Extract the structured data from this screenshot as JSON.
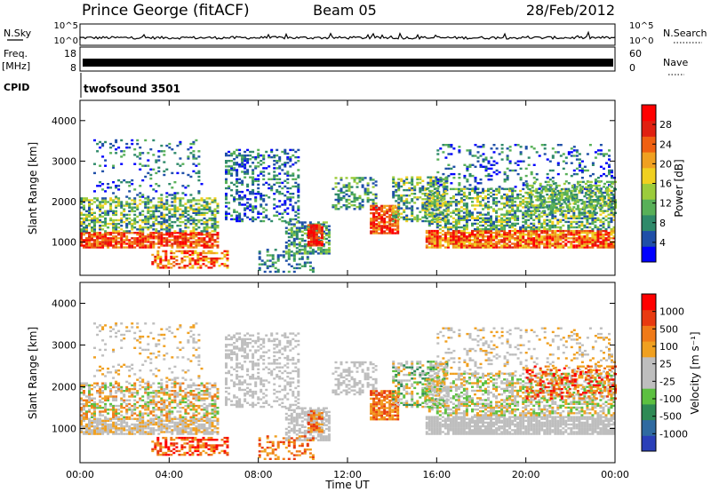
{
  "header": {
    "station": "Prince George (fitACF)",
    "beam": "Beam 05",
    "date": "28/Feb/2012"
  },
  "left_labels": {
    "nsky": "N.Sky",
    "freq_line1": "Freq.",
    "freq_line2": "[MHz]",
    "cpid": "CPID"
  },
  "right_labels": {
    "nsearch": "N.Search",
    "nave": "Nave"
  },
  "cpid_value": "twofsound 3501",
  "noise_axis": {
    "ticks": [
      "10^5",
      "10^0"
    ],
    "right_ticks": [
      "10^5",
      "10^0"
    ]
  },
  "freq_axis": {
    "ticks": [
      "18",
      "8"
    ],
    "right_ticks": [
      "60",
      "0"
    ]
  },
  "colors": {
    "power": [
      "#0000ff",
      "#1f4fa8",
      "#2f8a6a",
      "#58b058",
      "#9ccc3c",
      "#f0d020",
      "#f0a020",
      "#f06010",
      "#e02010",
      "#ff0000"
    ],
    "velocity": [
      "#2a3fb8",
      "#2f6aa0",
      "#2e8a55",
      "#5cc040",
      "#bebebe",
      "#bebebe",
      "#f0a020",
      "#f07a18",
      "#e83a10",
      "#ff0000"
    ]
  },
  "chart_data": [
    {
      "type": "heatmap",
      "panel": "power",
      "ylabel": "Slant Range [km]",
      "ylim": [
        180,
        4500
      ],
      "yticks": [
        "1000",
        "2000",
        "3000",
        "4000"
      ],
      "colorbar": {
        "label": "Power [dB]",
        "ticks": [
          "28",
          "24",
          "20",
          "16",
          "12",
          "8",
          "4"
        ],
        "range": [
          0,
          30
        ]
      }
    },
    {
      "type": "heatmap",
      "panel": "velocity",
      "ylabel": "Slant Range [km]",
      "ylim": [
        180,
        4500
      ],
      "yticks": [
        "1000",
        "2000",
        "3000",
        "4000"
      ],
      "colorbar": {
        "label": "Velocity [m s⁻¹]",
        "ticks": [
          "1000",
          "500",
          "100",
          "25",
          "-25",
          "-100",
          "-500",
          "-1000"
        ]
      }
    }
  ],
  "x_axis": {
    "label": "Time UT",
    "ticks": [
      "00:00",
      "04:00",
      "08:00",
      "12:00",
      "16:00",
      "20:00",
      "00:00"
    ],
    "range_hours": [
      0,
      24
    ]
  }
}
